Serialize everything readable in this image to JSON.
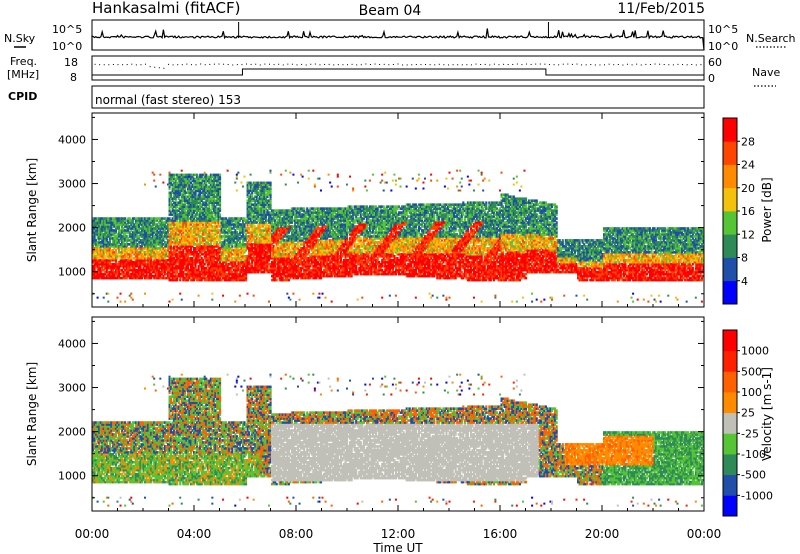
{
  "header": {
    "station": "Hankasalmi (fitACF)",
    "beam": "Beam 04",
    "date": "11/Feb/2015"
  },
  "strip": {
    "nsky_label": "N.Sky",
    "nsearch_label": "N.Search",
    "counts_ticks": [
      "10^5",
      "10^0"
    ],
    "freq_label_1": "Freq.",
    "freq_label_2": "[MHz]",
    "freq_ticks": [
      "18",
      "8"
    ],
    "nave_label": "Nave",
    "nave_ticks": [
      "60",
      "0"
    ],
    "cpid_label": "CPID",
    "cpid_text": "normal (fast stereo) 153"
  },
  "colors": {
    "power": [
      "#0000ff",
      "#1f4fa8",
      "#2e8b57",
      "#55c435",
      "#f4c20d",
      "#ff8c00",
      "#ff4500",
      "#ff0000"
    ],
    "velocity": [
      "#0000ff",
      "#1f4fa8",
      "#2e8b57",
      "#55c435",
      "#c0c0b8",
      "#ff8c00",
      "#ff6000",
      "#ff2000",
      "#ff0000"
    ]
  },
  "chart_data": [
    {
      "type": "heatmap",
      "name": "power",
      "xlabel": "",
      "ylabel": "Slant Range [km]",
      "xlim": [
        0,
        24
      ],
      "ylim": [
        200,
        4600
      ],
      "yticks": [
        1000,
        2000,
        3000,
        4000
      ],
      "colorbar_label": "Power [dB]",
      "colorbar_ticks": [
        "4",
        "8",
        "12",
        "16",
        "20",
        "24",
        "28"
      ],
      "colorbar_range": [
        0,
        32
      ]
    },
    {
      "type": "heatmap",
      "name": "velocity",
      "xlabel": "Time UT",
      "ylabel": "Slant Range [km]",
      "xlim": [
        0,
        24
      ],
      "ylim": [
        200,
        4600
      ],
      "xticks": [
        "00:00",
        "04:00",
        "08:00",
        "12:00",
        "16:00",
        "20:00",
        "00:00"
      ],
      "yticks": [
        1000,
        2000,
        3000,
        4000
      ],
      "colorbar_label": "Velocity [m s-1]",
      "colorbar_ticks": [
        "1000",
        "500",
        "100",
        "25",
        "-25",
        "-100",
        "-500",
        "-1000"
      ]
    }
  ]
}
